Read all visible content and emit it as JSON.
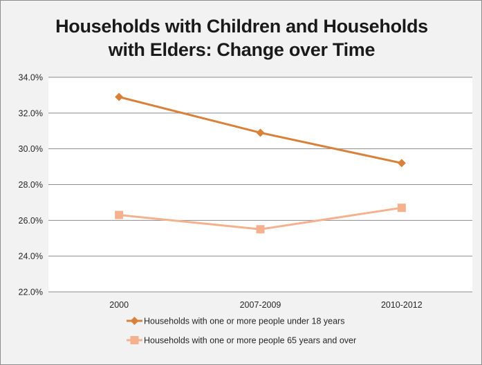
{
  "chart_data": {
    "type": "line",
    "title_lines": [
      "Households with Children and Households",
      "with Elders: Change over Time"
    ],
    "categories": [
      "2000",
      "2007-2009",
      "2010-2012"
    ],
    "ylim": [
      22.0,
      34.0
    ],
    "yticks": [
      "22.0%",
      "24.0%",
      "26.0%",
      "28.0%",
      "30.0%",
      "32.0%",
      "34.0%"
    ],
    "ytick_values": [
      22,
      24,
      26,
      28,
      30,
      32,
      34
    ],
    "grid": "horizontal",
    "legend_position": "bottom",
    "series": [
      {
        "name": "Households with one or more people under 18 years",
        "values": [
          32.9,
          30.9,
          29.2
        ],
        "color": "#d9813a",
        "marker": "diamond"
      },
      {
        "name": "Households with one or more people 65 years and over",
        "values": [
          26.3,
          25.5,
          26.7
        ],
        "color": "#f5b08e",
        "marker": "square"
      }
    ]
  }
}
